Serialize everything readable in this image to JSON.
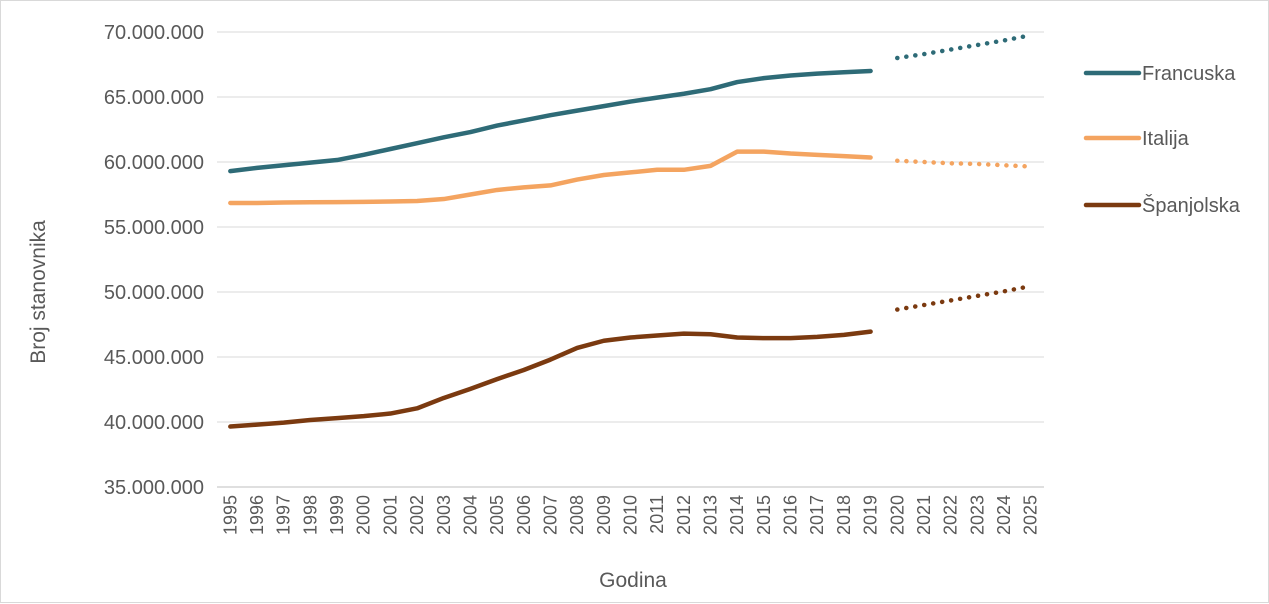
{
  "chart_data": {
    "type": "line",
    "xlabel": "Godina",
    "ylabel": "Broj stanovnika",
    "ylim": [
      35000000,
      70000000
    ],
    "yticks": [
      35000000,
      40000000,
      45000000,
      50000000,
      55000000,
      60000000,
      65000000,
      70000000
    ],
    "ytick_labels": [
      "35.000.000",
      "40.000.000",
      "45.000.000",
      "50.000.000",
      "55.000.000",
      "60.000.000",
      "65.000.000",
      "70.000.000"
    ],
    "categories": [
      "1995",
      "1996",
      "1997",
      "1998",
      "1999",
      "2000",
      "2001",
      "2002",
      "2003",
      "2004",
      "2005",
      "2006",
      "2007",
      "2008",
      "2009",
      "2010",
      "2011",
      "2012",
      "2013",
      "2014",
      "2015",
      "2016",
      "2017",
      "2018",
      "2019",
      "2020",
      "2021",
      "2022",
      "2023",
      "2024",
      "2025"
    ],
    "grid": true,
    "legend_position": "right",
    "series": [
      {
        "name": "Francuska",
        "color": "#2E6B77",
        "values": [
          59300000,
          59550000,
          59750000,
          59950000,
          60150000,
          60550000,
          61000000,
          61450000,
          61900000,
          62300000,
          62800000,
          63200000,
          63600000,
          63950000,
          64300000,
          64650000,
          64950000,
          65250000,
          65600000,
          66150000,
          66450000,
          66650000,
          66800000,
          66900000,
          67000000,
          null,
          null,
          null,
          null,
          null,
          null
        ],
        "projection": [
          null,
          null,
          null,
          null,
          null,
          null,
          null,
          null,
          null,
          null,
          null,
          null,
          null,
          null,
          null,
          null,
          null,
          null,
          null,
          null,
          null,
          null,
          null,
          null,
          null,
          68000000,
          68300000,
          68650000,
          69000000,
          69350000,
          69750000
        ]
      },
      {
        "name": "Italija",
        "color": "#F4A460",
        "values": [
          56850000,
          56850000,
          56880000,
          56900000,
          56910000,
          56930000,
          56960000,
          57000000,
          57150000,
          57500000,
          57850000,
          58050000,
          58200000,
          58650000,
          59000000,
          59200000,
          59400000,
          59400000,
          59700000,
          60800000,
          60800000,
          60650000,
          60550000,
          60450000,
          60350000,
          null,
          null,
          null,
          null,
          null,
          null
        ],
        "projection": [
          null,
          null,
          null,
          null,
          null,
          null,
          null,
          null,
          null,
          null,
          null,
          null,
          null,
          null,
          null,
          null,
          null,
          null,
          null,
          null,
          null,
          null,
          null,
          null,
          null,
          60100000,
          60000000,
          59900000,
          59850000,
          59750000,
          59650000
        ]
      },
      {
        "name": "Španjolska",
        "color": "#7B3A10",
        "values": [
          39650000,
          39800000,
          39950000,
          40150000,
          40300000,
          40450000,
          40650000,
          41050000,
          41850000,
          42550000,
          43300000,
          44000000,
          44800000,
          45700000,
          46250000,
          46500000,
          46650000,
          46800000,
          46750000,
          46500000,
          46450000,
          46450000,
          46550000,
          46700000,
          46950000,
          null,
          null,
          null,
          null,
          null,
          null
        ],
        "projection": [
          null,
          null,
          null,
          null,
          null,
          null,
          null,
          null,
          null,
          null,
          null,
          null,
          null,
          null,
          null,
          null,
          null,
          null,
          null,
          null,
          null,
          null,
          null,
          null,
          null,
          48650000,
          49000000,
          49350000,
          49700000,
          50050000,
          50450000
        ]
      }
    ]
  }
}
